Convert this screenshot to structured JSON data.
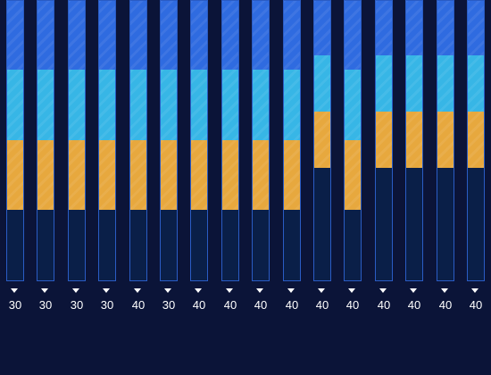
{
  "colors": {
    "background": "#0b1438",
    "bar_border": "#2a5cc4",
    "level_4": "#2f6be0",
    "level_3": "#37b6e6",
    "level_2": "#e7a83e",
    "empty": "#0a1f48"
  },
  "meters": [
    {
      "value": "30",
      "filled_segments": 4,
      "segment_colors": [
        "#0a1f48",
        "#e7a83e",
        "#37b6e6",
        "#2f6be0"
      ]
    },
    {
      "value": "30",
      "filled_segments": 4,
      "segment_colors": [
        "#0a1f48",
        "#e7a83e",
        "#37b6e6",
        "#2f6be0"
      ]
    },
    {
      "value": "30",
      "filled_segments": 4,
      "segment_colors": [
        "#0a1f48",
        "#e7a83e",
        "#37b6e6",
        "#2f6be0"
      ]
    },
    {
      "value": "30",
      "filled_segments": 4,
      "segment_colors": [
        "#0a1f48",
        "#e7a83e",
        "#37b6e6",
        "#2f6be0"
      ]
    },
    {
      "value": "40",
      "filled_segments": 4,
      "segment_colors": [
        "#0a1f48",
        "#e7a83e",
        "#37b6e6",
        "#2f6be0"
      ]
    },
    {
      "value": "30",
      "filled_segments": 4,
      "segment_colors": [
        "#0a1f48",
        "#e7a83e",
        "#37b6e6",
        "#2f6be0"
      ]
    },
    {
      "value": "40",
      "filled_segments": 4,
      "segment_colors": [
        "#0a1f48",
        "#e7a83e",
        "#37b6e6",
        "#2f6be0"
      ]
    },
    {
      "value": "40",
      "filled_segments": 4,
      "segment_colors": [
        "#0a1f48",
        "#e7a83e",
        "#37b6e6",
        "#2f6be0"
      ]
    },
    {
      "value": "40",
      "filled_segments": 4,
      "segment_colors": [
        "#0a1f48",
        "#e7a83e",
        "#37b6e6",
        "#2f6be0"
      ]
    },
    {
      "value": "40",
      "filled_segments": 4,
      "segment_colors": [
        "#0a1f48",
        "#e7a83e",
        "#37b6e6",
        "#2f6be0"
      ]
    },
    {
      "value": "40",
      "filled_segments": 5,
      "segment_colors": [
        "#0a1f48",
        "#0a1f48",
        "#e7a83e",
        "#37b6e6",
        "#2f6be0"
      ]
    },
    {
      "value": "40",
      "filled_segments": 4,
      "segment_colors": [
        "#0a1f48",
        "#e7a83e",
        "#37b6e6",
        "#2f6be0"
      ]
    },
    {
      "value": "40",
      "filled_segments": 5,
      "segment_colors": [
        "#0a1f48",
        "#0a1f48",
        "#e7a83e",
        "#37b6e6",
        "#2f6be0"
      ]
    },
    {
      "value": "40",
      "filled_segments": 5,
      "segment_colors": [
        "#0a1f48",
        "#0a1f48",
        "#e7a83e",
        "#37b6e6",
        "#2f6be0"
      ]
    },
    {
      "value": "40",
      "filled_segments": 5,
      "segment_colors": [
        "#0a1f48",
        "#0a1f48",
        "#e7a83e",
        "#37b6e6",
        "#2f6be0"
      ]
    },
    {
      "value": "40",
      "filled_segments": 5,
      "segment_colors": [
        "#0a1f48",
        "#0a1f48",
        "#e7a83e",
        "#37b6e6",
        "#2f6be0"
      ]
    }
  ]
}
